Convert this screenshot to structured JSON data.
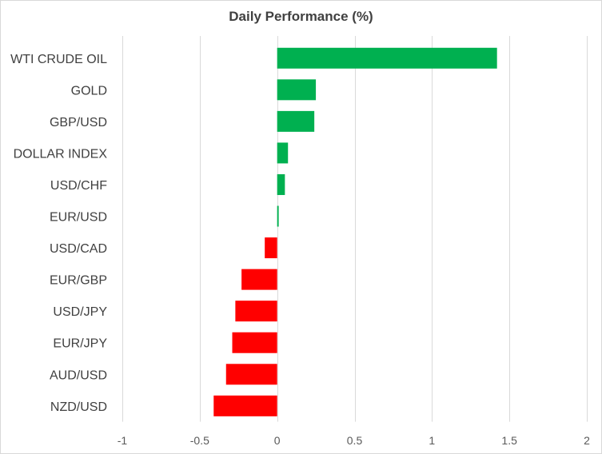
{
  "chart_data": {
    "type": "bar",
    "orientation": "horizontal",
    "title": "Daily Performance (%)",
    "xlabel": "",
    "ylabel": "",
    "categories": [
      "WTI CRUDE OIL",
      "GOLD",
      "GBP/USD",
      "DOLLAR INDEX",
      "USD/CHF",
      "EUR/USD",
      "USD/CAD",
      "EUR/GBP",
      "USD/JPY",
      "EUR/JPY",
      "AUD/USD",
      "NZD/USD"
    ],
    "values": [
      1.42,
      0.25,
      0.24,
      0.07,
      0.05,
      0.01,
      -0.08,
      -0.23,
      -0.27,
      -0.29,
      -0.33,
      -0.41
    ],
    "xlim": [
      -1,
      2
    ],
    "x_ticks": [
      -1,
      -0.5,
      0,
      0.5,
      1,
      1.5,
      2
    ],
    "x_tick_labels": [
      "-1",
      "-0.5",
      "0",
      "0.5",
      "1",
      "1.5",
      "2"
    ],
    "grid": "vertical",
    "legend": "none",
    "colors": {
      "positive": "#00b050",
      "negative": "#ff0000",
      "grid": "#d9d9d9",
      "text": "#404040"
    }
  }
}
